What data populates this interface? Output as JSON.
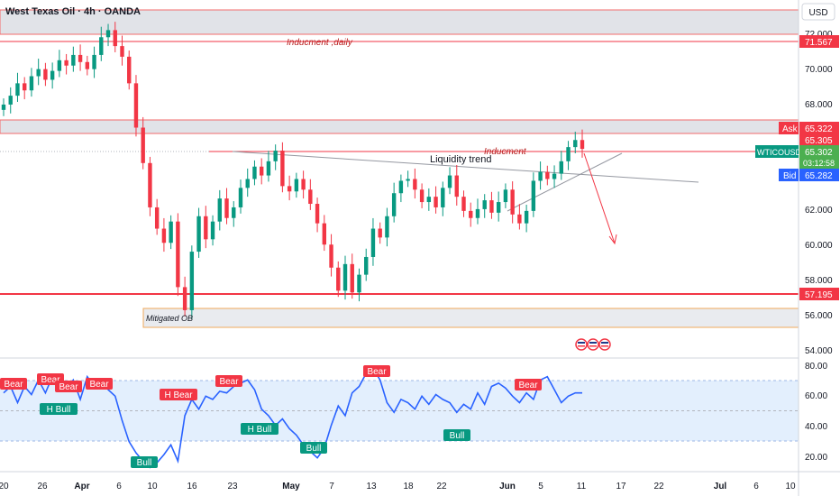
{
  "header": {
    "title": "West Texas Oil · 4h · OANDA",
    "currency": "USD"
  },
  "price_axis": {
    "ticks": [
      "72.000",
      "70.000",
      "68.000",
      "62.000",
      "60.000",
      "58.000",
      "56.000",
      "54.000"
    ]
  },
  "time_axis": {
    "ticks": [
      "20",
      "26",
      "Apr",
      "6",
      "10",
      "16",
      "23",
      "May",
      "7",
      "13",
      "18",
      "22",
      "Jun",
      "5",
      "11",
      "17",
      "22",
      "Jul",
      "6",
      "10"
    ]
  },
  "price_badges": {
    "inducement_daily": "71.567",
    "ask_label": "Ask",
    "ask": "65.322",
    "price": "65.305",
    "symbol": "WTICOUSD",
    "last": "65.302",
    "countdown": "03:12:58",
    "bid_label": "Bid",
    "bid": "65.282",
    "support": "57.195"
  },
  "annotations": {
    "inducement_daily": "Inducment ,daily",
    "inducement": "Inducment",
    "liquidity_trend": "Liquidity trend",
    "mitigated_ob": "Mitigated OB"
  },
  "rsi_panel": {
    "ticks": [
      "80.00",
      "60.00",
      "40.00",
      "20.00"
    ],
    "labels": {
      "bear": "Bear",
      "bull": "Bull",
      "h_bear": "H Bear",
      "h_bull": "H Bull"
    }
  },
  "colors": {
    "bull": "#089981",
    "bear": "#f23645",
    "rsi": "#2962ff",
    "zone": "#d1d4dc",
    "ask": "#f23645",
    "bid": "#2962ff"
  },
  "chart_data": [
    {
      "type": "candlestick",
      "title": "West Texas Oil · 4h · OANDA",
      "y_unit": "USD",
      "ylim": [
        53.5,
        73.7
      ],
      "x_range": [
        "Mar 19",
        "Jul 11"
      ],
      "series": [
        {
          "name": "",
          "close": [
            67.8,
            68.3,
            69.0,
            68.6,
            69.4,
            69.8,
            69.2,
            69.7,
            70.3,
            70.0,
            70.6,
            70.2,
            69.8,
            70.6,
            71.6,
            72.0,
            71.1,
            70.5,
            69.0,
            66.5,
            64.5,
            62.0,
            60.8,
            60.0,
            61.2,
            57.5,
            56.2,
            59.5,
            61.5,
            60.2,
            61.2,
            62.5,
            61.4,
            62.0,
            63.1,
            63.6,
            64.3,
            63.8,
            64.6,
            65.2,
            63.2,
            62.9,
            63.6,
            63.0,
            62.2,
            61.1,
            59.9,
            58.6,
            57.3,
            58.8,
            57.2,
            58.2,
            59.2,
            60.8,
            60.3,
            61.5,
            62.8,
            63.5,
            63.6,
            63.0,
            62.3,
            62.6,
            62.0,
            63.1,
            63.8,
            62.6,
            61.8,
            61.4,
            61.9,
            62.4,
            61.7,
            62.3,
            63.0,
            61.6,
            61.1,
            61.8,
            63.5,
            64.0,
            63.6,
            63.9,
            64.6,
            65.4,
            65.8,
            65.3
          ]
        }
      ]
    },
    {
      "type": "line",
      "title": "",
      "ylim": [
        13.5,
        83.5
      ],
      "series": [
        {
          "name": "",
          "values": [
            62,
            66,
            56,
            66,
            61,
            70,
            62,
            72,
            67,
            64,
            70,
            58,
            72,
            66,
            70,
            64,
            60,
            45,
            32,
            25,
            20,
            16,
            19,
            24,
            30,
            20,
            48,
            58,
            52,
            60,
            58,
            63,
            62,
            66,
            68,
            70,
            64,
            52,
            48,
            42,
            46,
            40,
            36,
            30,
            26,
            22,
            28,
            42,
            54,
            48,
            62,
            66,
            74,
            77,
            70,
            56,
            50,
            58,
            56,
            52,
            60,
            55,
            61,
            58,
            56,
            50,
            55,
            52,
            62,
            55,
            66,
            68,
            65,
            60,
            56,
            62,
            58,
            70,
            72,
            64,
            56,
            60,
            62,
            62
          ]
        }
      ],
      "bands": [
        30,
        70
      ],
      "midline": 50
    }
  ]
}
